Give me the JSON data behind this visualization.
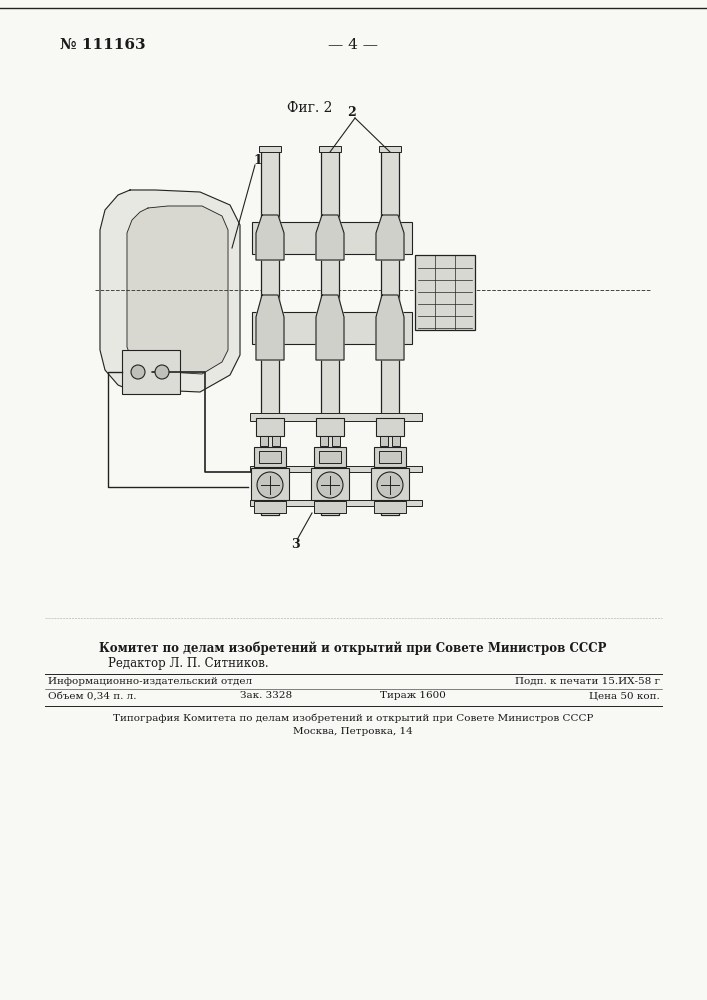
{
  "bg_color": "#f5f5f0",
  "page_color": "#f8f8f5",
  "top_left_text": "№ 111163",
  "top_center_text": "— 4 —",
  "fig_label": "Фиг. 2",
  "label_1": "1",
  "label_2": "2",
  "label_3": "3",
  "bottom_bold_text": "Комитет по делам изобретений и открытий при Совете Министров СССР",
  "bottom_editor": "Редактор Л. П. Ситников.",
  "table_col1_row1": "Информационно-издательский отдел",
  "table_col1_row2": "Объем 0,34 п. л.",
  "table_col2_row2": "Зак. 3328",
  "table_col3_row2": "Тираж 1600",
  "table_col1r1_right": "Подп. к печати 15.ИХ-58 г",
  "table_col1r2_right": "Цена 50 коп.",
  "bottom_typo1": "Типография Комитета по делам изобретений и открытий при Совете Министров СССР",
  "bottom_typo2": "Москва, Петровка, 14",
  "line_color": "#222222",
  "text_color": "#1a1a1a"
}
